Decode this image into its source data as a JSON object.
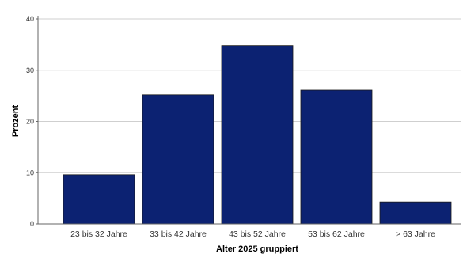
{
  "chart_data": {
    "type": "bar",
    "title": "",
    "xlabel": "Alter 2025 gruppiert",
    "ylabel": "Prozent",
    "categories": [
      "23 bis 32 Jahre",
      "33 bis 42 Jahre",
      "43 bis 52 Jahre",
      "53 bis 62 Jahre",
      "> 63 Jahre"
    ],
    "values": [
      9.6,
      25.2,
      34.8,
      26.1,
      4.3
    ],
    "ylim": [
      0,
      40
    ],
    "yticks": [
      "0",
      "10",
      "20",
      "30",
      "40"
    ],
    "grid": true,
    "colors": {
      "bar": "#0c2272",
      "bar_edge": "#1a1a1a",
      "grid": "#cfcfcf",
      "axis": "#666666"
    }
  }
}
